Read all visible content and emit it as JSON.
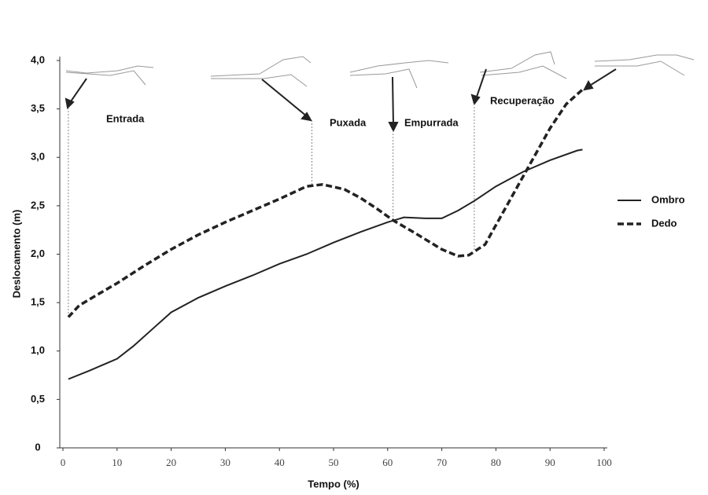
{
  "chart_data": {
    "type": "line",
    "xlabel": "Tempo (%)",
    "ylabel": "Deslocamento (m)",
    "xlim": [
      0,
      100
    ],
    "ylim": [
      0,
      4
    ],
    "xticks": [
      0,
      10,
      20,
      30,
      40,
      50,
      60,
      70,
      80,
      90,
      100
    ],
    "yticks": [
      0,
      {
        "value": 0.5,
        "label": "0,5"
      },
      {
        "value": 1,
        "label": "1,0"
      },
      {
        "value": 1.5,
        "label": "1,5"
      },
      {
        "value": 2,
        "label": "2,0"
      },
      {
        "value": 2.5,
        "label": "2,5"
      },
      {
        "value": 3,
        "label": "3,0"
      },
      {
        "value": 3.5,
        "label": "3,5"
      },
      {
        "value": 4,
        "label": "4,0"
      }
    ],
    "series": [
      {
        "name": "Ombro",
        "color": "#222222",
        "dash": "solid",
        "x": [
          1,
          5,
          10,
          13,
          17,
          20,
          25,
          30,
          35,
          40,
          45,
          50,
          55,
          60,
          63,
          67,
          70,
          73,
          76,
          80,
          85,
          90,
          95,
          96
        ],
        "values": [
          0.71,
          0.8,
          0.92,
          1.05,
          1.25,
          1.4,
          1.55,
          1.67,
          1.78,
          1.9,
          2.0,
          2.12,
          2.23,
          2.33,
          2.38,
          2.37,
          2.37,
          2.45,
          2.55,
          2.7,
          2.85,
          2.97,
          3.07,
          3.08
        ]
      },
      {
        "name": "Dedo",
        "color": "#222222",
        "dash": "dashed",
        "x": [
          1,
          3,
          6,
          10,
          15,
          20,
          25,
          30,
          35,
          40,
          45,
          48,
          52,
          55,
          58,
          61,
          65,
          70,
          73,
          75,
          78,
          80,
          85,
          88,
          90,
          93,
          96
        ],
        "values": [
          1.35,
          1.47,
          1.57,
          1.7,
          1.88,
          2.05,
          2.2,
          2.33,
          2.45,
          2.57,
          2.7,
          2.72,
          2.67,
          2.58,
          2.47,
          2.35,
          2.22,
          2.05,
          1.98,
          1.99,
          2.1,
          2.3,
          2.8,
          3.1,
          3.3,
          3.55,
          3.7
        ]
      }
    ],
    "phase_lines": [
      1,
      46,
      61,
      76
    ],
    "annotations": [
      "Entrada",
      "Puxada",
      "Empurrada",
      "Recuperação"
    ]
  }
}
